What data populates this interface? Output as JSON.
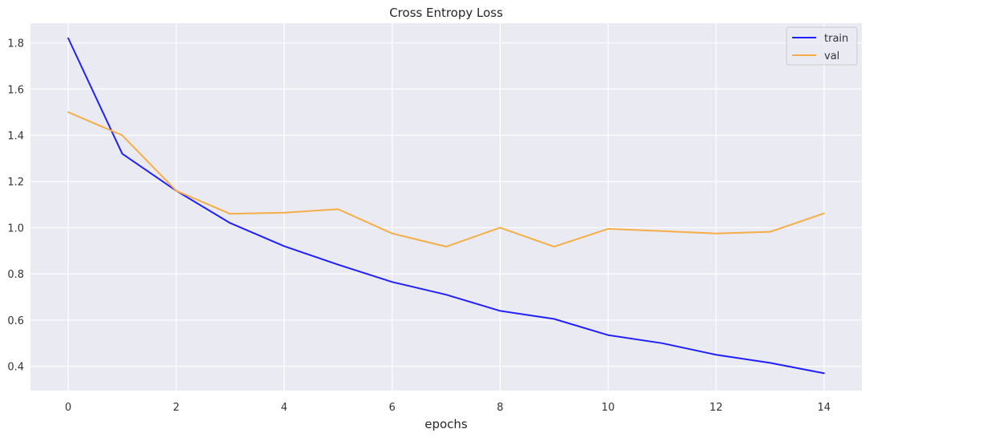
{
  "chart_data": {
    "type": "line",
    "title": "Cross Entropy Loss",
    "xlabel": "epochs",
    "ylabel": "",
    "xlim": [
      -0.7,
      14.7
    ],
    "ylim": [
      0.295,
      1.885
    ],
    "x_ticks": [
      0,
      2,
      4,
      6,
      8,
      10,
      12,
      14
    ],
    "y_ticks": [
      0.4,
      0.6,
      0.8,
      1.0,
      1.2,
      1.4,
      1.6,
      1.8
    ],
    "x_tick_labels": [
      "0",
      "2",
      "4",
      "6",
      "8",
      "10",
      "12",
      "14"
    ],
    "y_tick_labels": [
      "0.4",
      "0.6",
      "0.8",
      "1.0",
      "1.2",
      "1.4",
      "1.6",
      "1.8"
    ],
    "grid": true,
    "legend_position": "top-right",
    "background_color": "#eaeaf2",
    "grid_color": "#ffffff",
    "x": [
      0,
      1,
      2,
      3,
      4,
      5,
      6,
      7,
      8,
      9,
      10,
      11,
      12,
      13,
      14
    ],
    "series": [
      {
        "name": "train",
        "color": "#1f1fff",
        "values": [
          1.82,
          1.32,
          1.16,
          1.02,
          0.92,
          0.84,
          0.765,
          0.71,
          0.64,
          0.605,
          0.535,
          0.5,
          0.45,
          0.415,
          0.37
        ]
      },
      {
        "name": "val",
        "color": "#f5ad45",
        "values": [
          1.5,
          1.4,
          1.16,
          1.06,
          1.065,
          1.08,
          0.975,
          0.918,
          1.0,
          0.918,
          0.995,
          0.985,
          0.975,
          0.982,
          1.062
        ]
      }
    ]
  }
}
